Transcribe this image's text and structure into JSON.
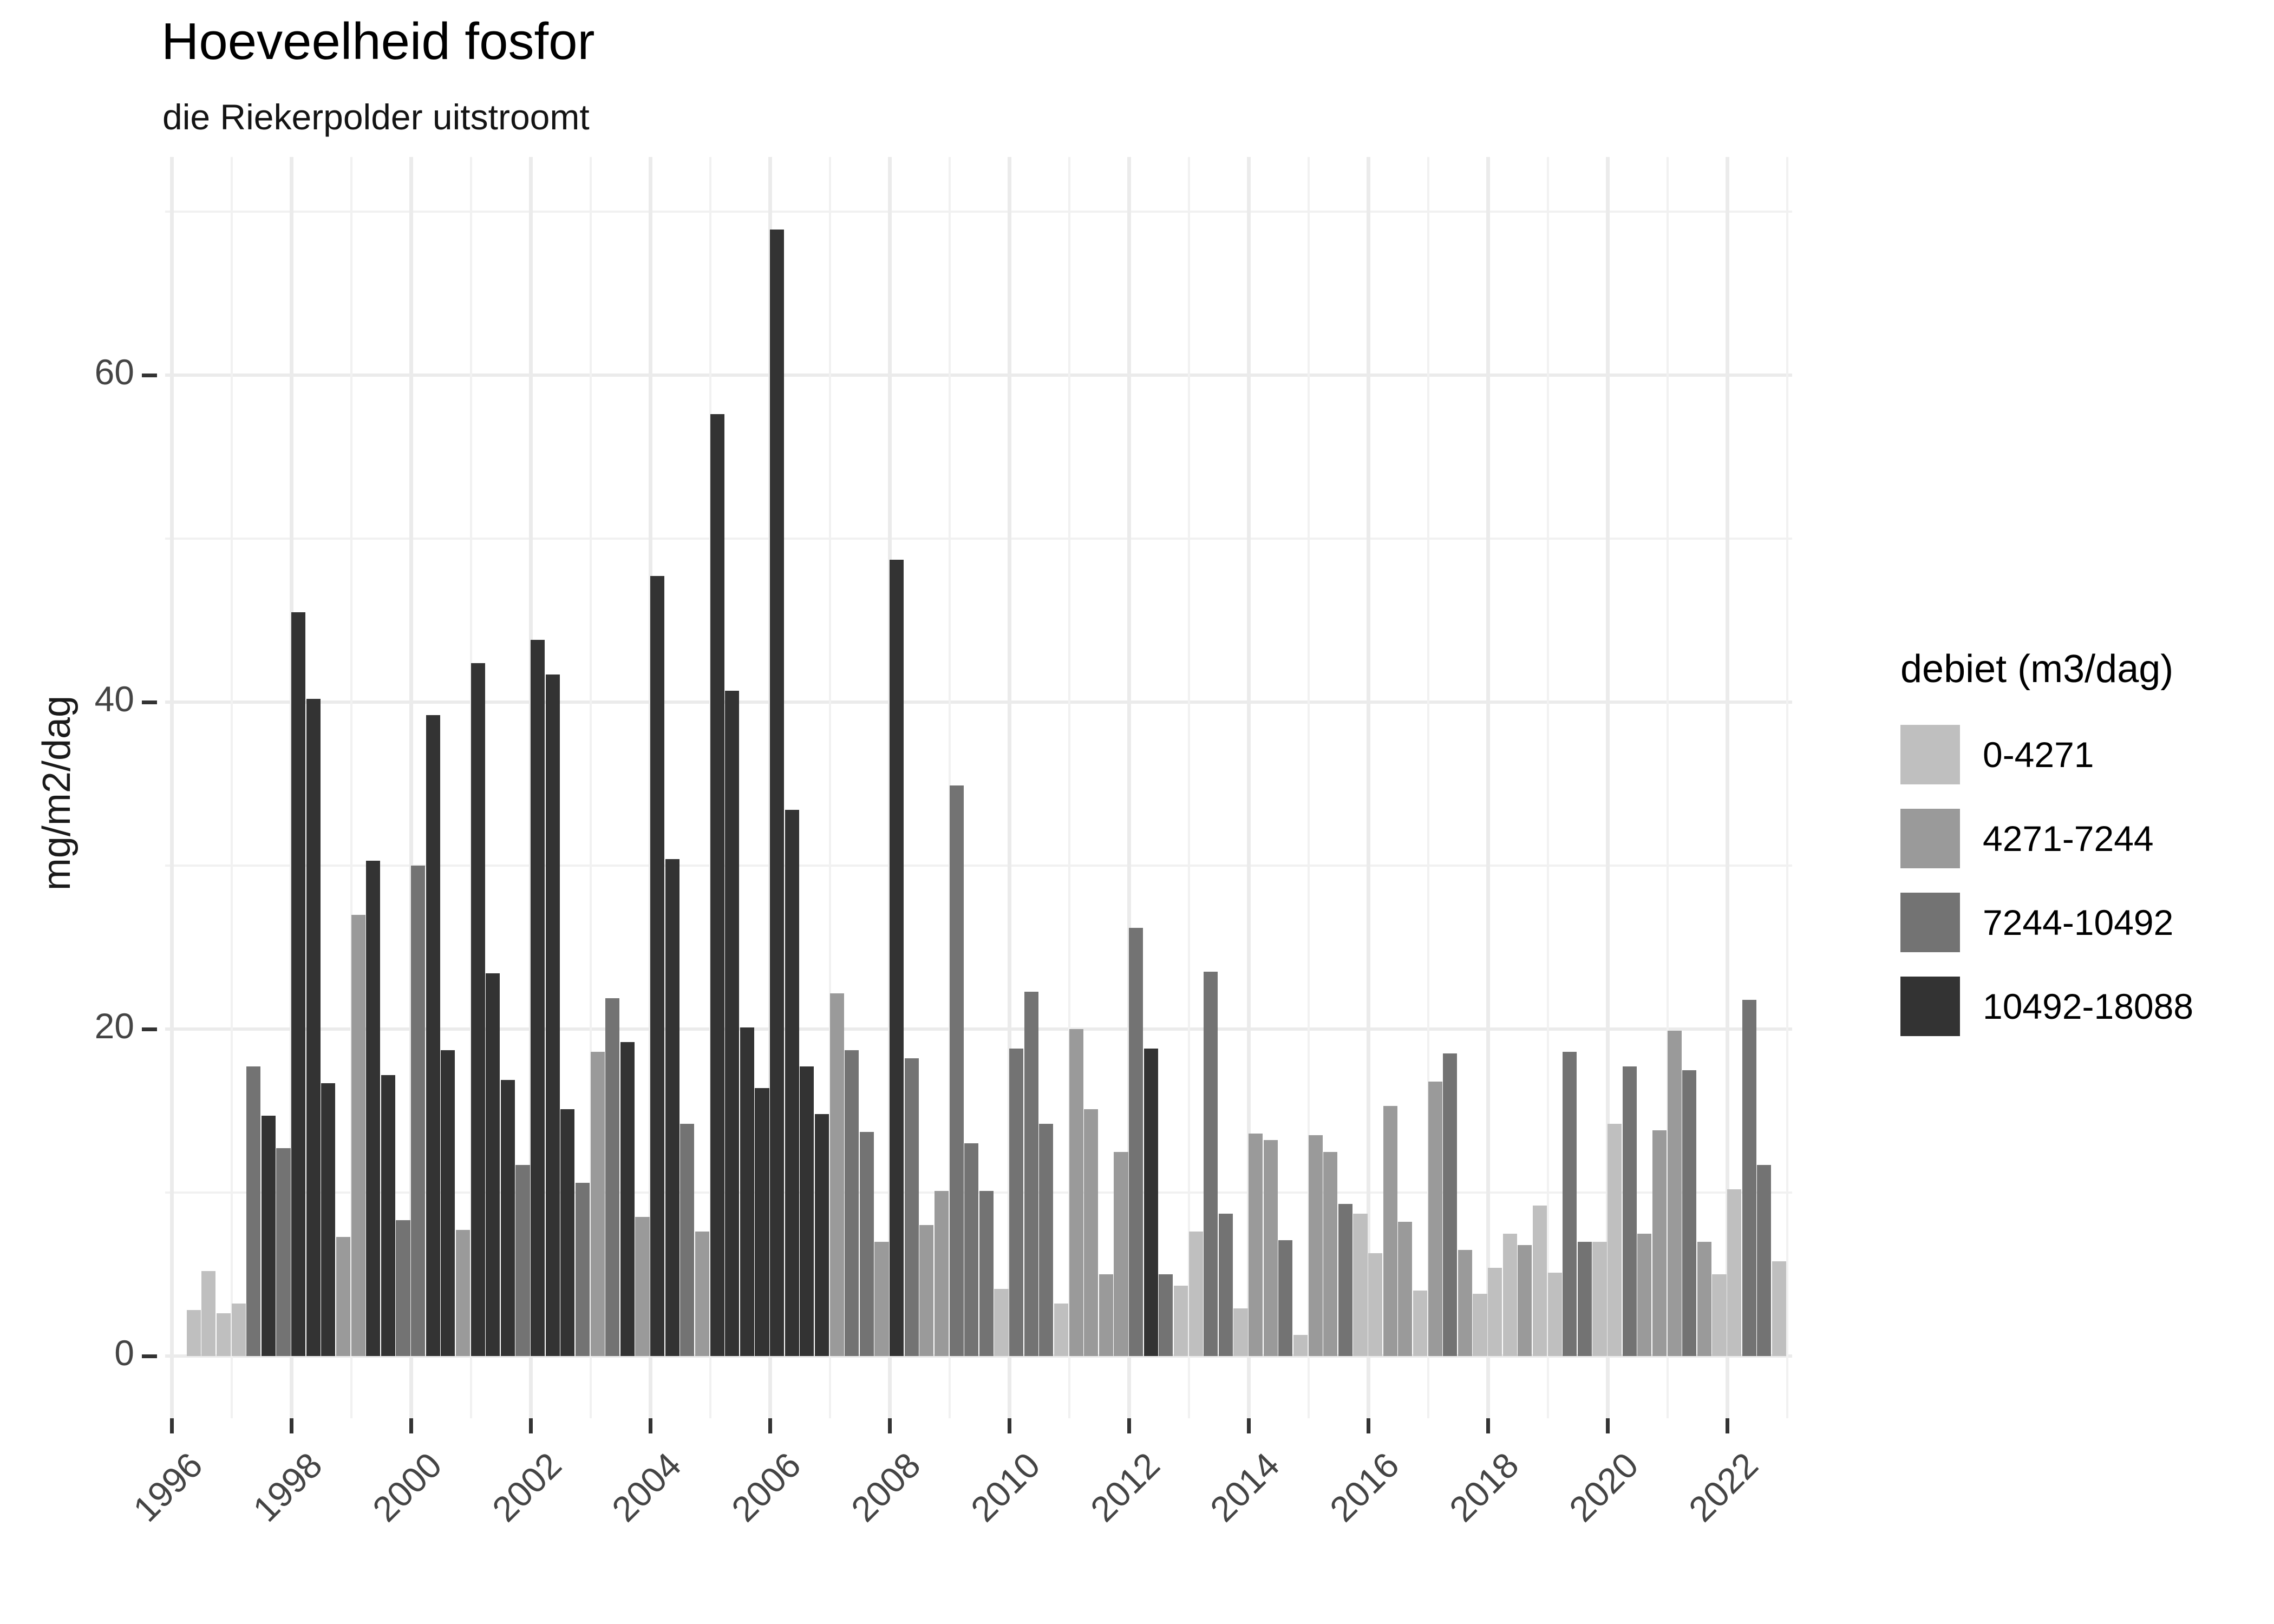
{
  "chart_data": {
    "type": "bar",
    "title": "Hoeveelheid fosfor",
    "subtitle": "die Riekerpolder uitstroomt",
    "ylabel": "mg/m2/dag",
    "xlabel": "",
    "ylim": [
      0,
      70
    ],
    "grid": true,
    "y_axis": {
      "tick_values": [
        0,
        20,
        40,
        60
      ],
      "minor_gridlines": [
        10,
        30,
        50,
        70
      ]
    },
    "x_axis": {
      "tick_years": [
        1996,
        1998,
        2000,
        2002,
        2004,
        2006,
        2008,
        2010,
        2012,
        2014,
        2016,
        2018,
        2020,
        2022
      ],
      "minor_gridline_years": [
        1997,
        1999,
        2001,
        2003,
        2005,
        2007,
        2009,
        2011,
        2013,
        2015,
        2017,
        2019,
        2021,
        2023
      ]
    },
    "legend": {
      "title": "debiet (m3/dag)",
      "position": "right",
      "categories": [
        {
          "label": "0-4271",
          "color": "#bfbfbf"
        },
        {
          "label": "4271-7244",
          "color": "#9a9a9a"
        },
        {
          "label": "7244-10492",
          "color": "#737373"
        },
        {
          "label": "10492-18088",
          "color": "#333333"
        }
      ]
    },
    "bars_columns": [
      "quarter",
      "value_mg_m2_dag",
      "debiet_class_index"
    ],
    "bars": [
      [
        "1996-Q2",
        2.8,
        0
      ],
      [
        "1996-Q3",
        5.2,
        0
      ],
      [
        "1996-Q4",
        2.6,
        0
      ],
      [
        "1997-Q1",
        3.2,
        0
      ],
      [
        "1997-Q2",
        17.7,
        2
      ],
      [
        "1997-Q3",
        14.7,
        3
      ],
      [
        "1997-Q4",
        12.7,
        2
      ],
      [
        "1998-Q1",
        45.5,
        3
      ],
      [
        "1998-Q2",
        40.2,
        3
      ],
      [
        "1998-Q3",
        16.7,
        3
      ],
      [
        "1998-Q4",
        7.3,
        1
      ],
      [
        "1999-Q1",
        27.0,
        1
      ],
      [
        "1999-Q2",
        30.3,
        3
      ],
      [
        "1999-Q3",
        17.2,
        3
      ],
      [
        "1999-Q4",
        8.3,
        2
      ],
      [
        "2000-Q1",
        30.0,
        2
      ],
      [
        "2000-Q2",
        39.2,
        3
      ],
      [
        "2000-Q3",
        18.7,
        3
      ],
      [
        "2000-Q4",
        7.7,
        1
      ],
      [
        "2001-Q1",
        42.4,
        3
      ],
      [
        "2001-Q2",
        23.4,
        3
      ],
      [
        "2001-Q3",
        16.9,
        3
      ],
      [
        "2001-Q4",
        11.7,
        2
      ],
      [
        "2002-Q1",
        43.8,
        3
      ],
      [
        "2002-Q2",
        41.7,
        3
      ],
      [
        "2002-Q3",
        15.1,
        3
      ],
      [
        "2002-Q4",
        10.6,
        2
      ],
      [
        "2003-Q1",
        18.6,
        1
      ],
      [
        "2003-Q2",
        21.9,
        2
      ],
      [
        "2003-Q3",
        19.2,
        3
      ],
      [
        "2003-Q4",
        8.5,
        1
      ],
      [
        "2004-Q1",
        47.7,
        3
      ],
      [
        "2004-Q2",
        30.4,
        3
      ],
      [
        "2004-Q3",
        14.2,
        2
      ],
      [
        "2004-Q4",
        7.6,
        1
      ],
      [
        "2005-Q1",
        57.6,
        3
      ],
      [
        "2005-Q2",
        40.7,
        3
      ],
      [
        "2005-Q3",
        20.1,
        3
      ],
      [
        "2005-Q4",
        16.4,
        3
      ],
      [
        "2006-Q1",
        68.9,
        3
      ],
      [
        "2006-Q2",
        33.4,
        3
      ],
      [
        "2006-Q3",
        17.7,
        3
      ],
      [
        "2006-Q4",
        14.8,
        3
      ],
      [
        "2007-Q1",
        22.2,
        1
      ],
      [
        "2007-Q2",
        18.7,
        2
      ],
      [
        "2007-Q3",
        13.7,
        2
      ],
      [
        "2007-Q4",
        7.0,
        1
      ],
      [
        "2008-Q1",
        48.7,
        3
      ],
      [
        "2008-Q2",
        18.2,
        2
      ],
      [
        "2008-Q3",
        8.0,
        1
      ],
      [
        "2008-Q4",
        10.1,
        1
      ],
      [
        "2009-Q1",
        34.9,
        2
      ],
      [
        "2009-Q2",
        13.0,
        2
      ],
      [
        "2009-Q3",
        10.1,
        2
      ],
      [
        "2009-Q4",
        4.1,
        0
      ],
      [
        "2010-Q1",
        18.8,
        2
      ],
      [
        "2010-Q2",
        22.3,
        2
      ],
      [
        "2010-Q3",
        14.2,
        2
      ],
      [
        "2010-Q4",
        3.2,
        0
      ],
      [
        "2011-Q1",
        20.0,
        1
      ],
      [
        "2011-Q2",
        15.1,
        1
      ],
      [
        "2011-Q3",
        5.0,
        1
      ],
      [
        "2011-Q4",
        12.5,
        1
      ],
      [
        "2012-Q1",
        26.2,
        2
      ],
      [
        "2012-Q2",
        18.8,
        3
      ],
      [
        "2012-Q3",
        5.0,
        2
      ],
      [
        "2012-Q4",
        4.3,
        0
      ],
      [
        "2013-Q1",
        7.6,
        0
      ],
      [
        "2013-Q2",
        23.5,
        2
      ],
      [
        "2013-Q3",
        8.7,
        2
      ],
      [
        "2013-Q4",
        2.9,
        0
      ],
      [
        "2014-Q1",
        13.6,
        1
      ],
      [
        "2014-Q2",
        13.2,
        1
      ],
      [
        "2014-Q3",
        7.1,
        2
      ],
      [
        "2014-Q4",
        1.3,
        0
      ],
      [
        "2015-Q1",
        13.5,
        1
      ],
      [
        "2015-Q2",
        12.5,
        1
      ],
      [
        "2015-Q3",
        9.3,
        2
      ],
      [
        "2015-Q4",
        8.7,
        0
      ],
      [
        "2016-Q1",
        6.3,
        0
      ],
      [
        "2016-Q2",
        15.3,
        1
      ],
      [
        "2016-Q3",
        8.2,
        1
      ],
      [
        "2016-Q4",
        4.0,
        0
      ],
      [
        "2017-Q1",
        16.8,
        1
      ],
      [
        "2017-Q2",
        18.5,
        2
      ],
      [
        "2017-Q3",
        6.5,
        1
      ],
      [
        "2017-Q4",
        3.8,
        0
      ],
      [
        "2018-Q1",
        5.4,
        0
      ],
      [
        "2018-Q2",
        7.5,
        0
      ],
      [
        "2018-Q3",
        6.8,
        1
      ],
      [
        "2018-Q4",
        9.2,
        0
      ],
      [
        "2019-Q1",
        5.1,
        0
      ],
      [
        "2019-Q2",
        18.6,
        2
      ],
      [
        "2019-Q3",
        7.0,
        2
      ],
      [
        "2019-Q4",
        7.0,
        0
      ],
      [
        "2020-Q1",
        14.2,
        0
      ],
      [
        "2020-Q2",
        17.7,
        2
      ],
      [
        "2020-Q3",
        7.5,
        1
      ],
      [
        "2020-Q4",
        13.8,
        1
      ],
      [
        "2021-Q1",
        19.9,
        1
      ],
      [
        "2021-Q2",
        17.5,
        2
      ],
      [
        "2021-Q3",
        7.0,
        1
      ],
      [
        "2021-Q4",
        5.0,
        0
      ],
      [
        "2022-Q1",
        10.2,
        0
      ],
      [
        "2022-Q2",
        21.8,
        2
      ],
      [
        "2022-Q3",
        11.7,
        2
      ],
      [
        "2022-Q4",
        5.8,
        0
      ]
    ]
  }
}
